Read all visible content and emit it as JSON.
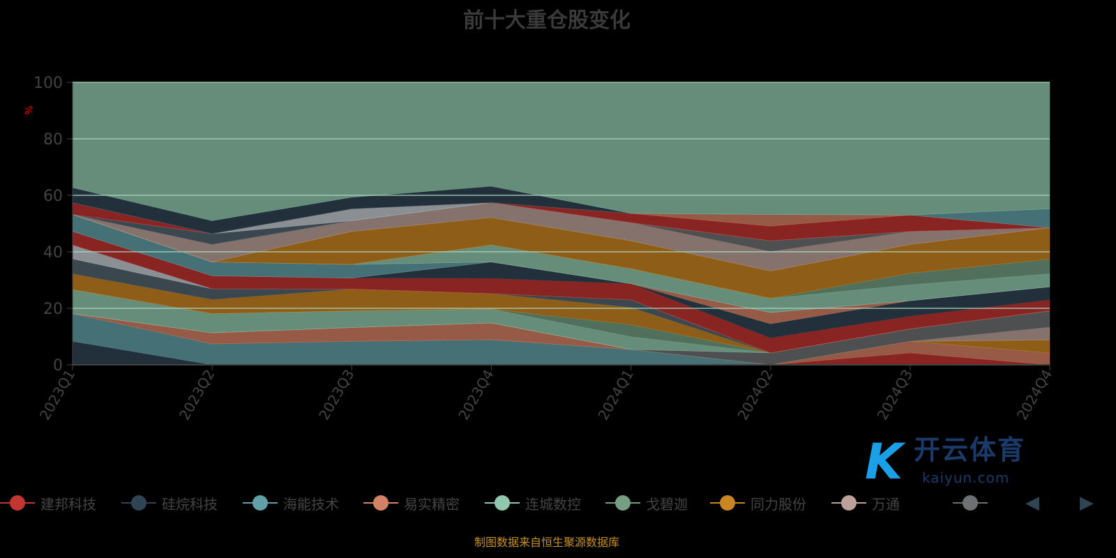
{
  "chart_data": {
    "type": "area",
    "stacked": true,
    "title": "前十大重仓股变化",
    "ylabel": "%",
    "xlabel": "",
    "ylim": [
      0,
      100
    ],
    "yticks": [
      "0",
      "20",
      "40",
      "60",
      "80",
      "100"
    ],
    "categories": [
      "2023Q1",
      "2023Q2",
      "2023Q3",
      "2023Q4",
      "2024Q1",
      "2024Q2",
      "2024Q3",
      "2024Q4"
    ],
    "grid": true,
    "legend_position": "bottom",
    "legend": [
      {
        "name": "建邦科技",
        "color": "#c23531"
      },
      {
        "name": "硅烷科技",
        "color": "#2f4554"
      },
      {
        "name": "海能技术",
        "color": "#61a0a8"
      },
      {
        "name": "易实精密",
        "color": "#d48265"
      },
      {
        "name": "连城数控",
        "color": "#91c7ae"
      },
      {
        "name": "戈碧迦",
        "color": "#749f83"
      },
      {
        "name": "同力股份",
        "color": "#ca8622"
      },
      {
        "name": "万通",
        "color": "#bda29a"
      },
      {
        "name": "",
        "color": "#6e7074"
      }
    ],
    "layers": [
      {
        "color": "#2f4554",
        "values": [
          8.3,
          0,
          0,
          0,
          0,
          0,
          0,
          0
        ]
      },
      {
        "color": "#61a0a8",
        "values": [
          9.8,
          7.4,
          8.3,
          8.9,
          5.4,
          0,
          0,
          0
        ]
      },
      {
        "color": "#c23531",
        "values": [
          0,
          0,
          0,
          0,
          0,
          0,
          4.2,
          0
        ]
      },
      {
        "color": "#d48265",
        "values": [
          0,
          3.9,
          4.9,
          5.9,
          0,
          0,
          4.1,
          4.2
        ]
      },
      {
        "color": "#ca8622",
        "values": [
          0,
          0,
          0,
          0,
          0,
          0,
          0,
          4.6
        ]
      },
      {
        "color": "#bda29a",
        "values": [
          0,
          0,
          0,
          0,
          0,
          0,
          0,
          4.5
        ]
      },
      {
        "color": "#6e7074",
        "values": [
          0,
          0,
          0,
          0,
          0,
          4.2,
          4.4,
          5.8
        ]
      },
      {
        "color": "#91c7ae",
        "values": [
          8.5,
          6.8,
          5.9,
          4.9,
          4.5,
          0,
          0,
          0
        ]
      },
      {
        "color": "#749f83",
        "values": [
          0,
          0,
          0,
          0,
          4.3,
          0,
          0,
          0
        ]
      },
      {
        "color": "#ca8622",
        "values": [
          5.6,
          5.0,
          7.7,
          5.5,
          6.1,
          0,
          0,
          0
        ]
      },
      {
        "color": "#546570",
        "values": [
          5.3,
          3.8,
          0,
          0,
          2.7,
          0,
          0,
          0
        ]
      },
      {
        "color": "#c4ccd3",
        "values": [
          4.9,
          0,
          0,
          0,
          0,
          0,
          0,
          0
        ]
      },
      {
        "color": "#c23531",
        "values": [
          4.8,
          4.6,
          3.9,
          5.4,
          5.7,
          5.3,
          4.5,
          3.9
        ]
      },
      {
        "color": "#2f4554",
        "values": [
          0,
          0,
          0,
          5.8,
          0,
          5.0,
          5.5,
          4.6
        ]
      },
      {
        "color": "#d48265",
        "values": [
          0,
          0,
          0,
          0,
          0,
          4.0,
          0,
          0
        ]
      },
      {
        "color": "#61a0a8",
        "values": [
          6.0,
          4.9,
          4.8,
          0,
          0,
          0,
          0,
          0
        ]
      },
      {
        "color": "#91c7ae",
        "values": [
          0,
          0,
          0,
          6.0,
          5.3,
          5.0,
          5.6,
          4.6
        ]
      },
      {
        "color": "#749f83",
        "values": [
          0,
          0,
          0,
          0,
          0,
          0,
          4.1,
          5.2
        ]
      },
      {
        "color": "#ca8622",
        "values": [
          0,
          0,
          11.7,
          9.7,
          9.9,
          9.7,
          10.2,
          11.1
        ]
      },
      {
        "color": "#bda29a",
        "values": [
          0,
          6.2,
          3.8,
          5.3,
          6.4,
          6.9,
          4.6,
          0
        ]
      },
      {
        "color": "#6e7074",
        "values": [
          0,
          0,
          0,
          0,
          0,
          3.8,
          0,
          0
        ]
      },
      {
        "color": "#546570",
        "values": [
          0,
          3.8,
          0,
          0,
          0,
          0,
          0,
          0
        ]
      },
      {
        "color": "#c4ccd3",
        "values": [
          0,
          0,
          4.2,
          0,
          0,
          0,
          0,
          0
        ]
      },
      {
        "color": "#c23531",
        "values": [
          4.2,
          0,
          0,
          0,
          3.3,
          5.2,
          5.8,
          0
        ]
      },
      {
        "color": "#d48265",
        "values": [
          0,
          0,
          0,
          0,
          0,
          4.1,
          0,
          0
        ]
      },
      {
        "color": "#61a0a8",
        "values": [
          0,
          0,
          0,
          0,
          0,
          0,
          0,
          6.7
        ]
      },
      {
        "color": "#2f4554",
        "values": [
          5.3,
          4.6,
          4.1,
          5.8,
          0,
          0,
          0,
          0
        ]
      }
    ],
    "remainder_color": "#91c7ae",
    "remainder_values": [
      37.3,
      49.0,
      40.7,
      36.8,
      46.4,
      46.8,
      47.0,
      44.8
    ]
  },
  "footer": "制图数据来自恒生聚源数据库",
  "watermark": {
    "cn": "开云体育",
    "en": "kaiyun.com"
  },
  "pager": {
    "prev": "◀",
    "next": "▶"
  }
}
